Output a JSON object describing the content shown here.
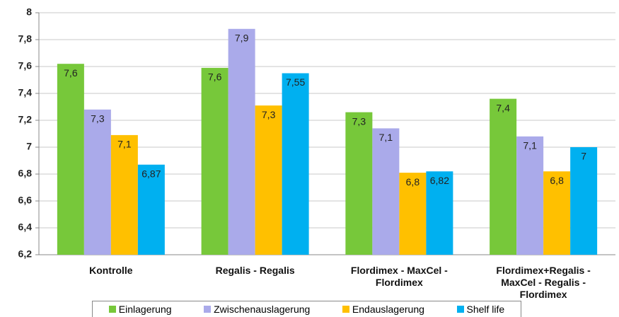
{
  "chart_data": {
    "type": "bar",
    "categories": [
      "Kontrolle",
      "Regalis - Regalis",
      "Flordimex - MaxCel - Flordimex",
      "Flordimex+Regalis - MaxCel - Regalis - Flordimex"
    ],
    "series": [
      {
        "name": "Einlagerung",
        "color": "#77c83a",
        "values": [
          7.62,
          7.59,
          7.26,
          7.36
        ],
        "value_labels": [
          "7,6",
          "7,6",
          "7,3",
          "7,4"
        ]
      },
      {
        "name": "Zwischenauslagerung",
        "color": "#aaaaea",
        "values": [
          7.28,
          7.88,
          7.14,
          7.08
        ],
        "value_labels": [
          "7,3",
          "7,9",
          "7,1",
          "7,1"
        ]
      },
      {
        "name": "Endauslagerung",
        "color": "#ffc000",
        "values": [
          7.09,
          7.31,
          6.81,
          6.82
        ],
        "value_labels": [
          "7,1",
          "7,3",
          "6,8",
          "6,8"
        ]
      },
      {
        "name": "Shelf life",
        "color": "#00b0f0",
        "values": [
          6.87,
          7.55,
          6.82,
          7.0
        ],
        "value_labels": [
          "6,87",
          "7,55",
          "6,82",
          "7"
        ]
      }
    ],
    "ylim": [
      6.2,
      8
    ],
    "yticks": [
      {
        "value": 6.2,
        "label": "6,2"
      },
      {
        "value": 6.4,
        "label": "6,4"
      },
      {
        "value": 6.6,
        "label": "6,6"
      },
      {
        "value": 6.8,
        "label": "6,8"
      },
      7,
      {
        "value": 7.2,
        "label": "7,2"
      },
      {
        "value": 7.4,
        "label": "7,4"
      },
      {
        "value": 7.6,
        "label": "7,6"
      },
      {
        "value": 7.8,
        "label": "7,8"
      },
      8
    ],
    "grid": true,
    "legend": "bottom"
  }
}
